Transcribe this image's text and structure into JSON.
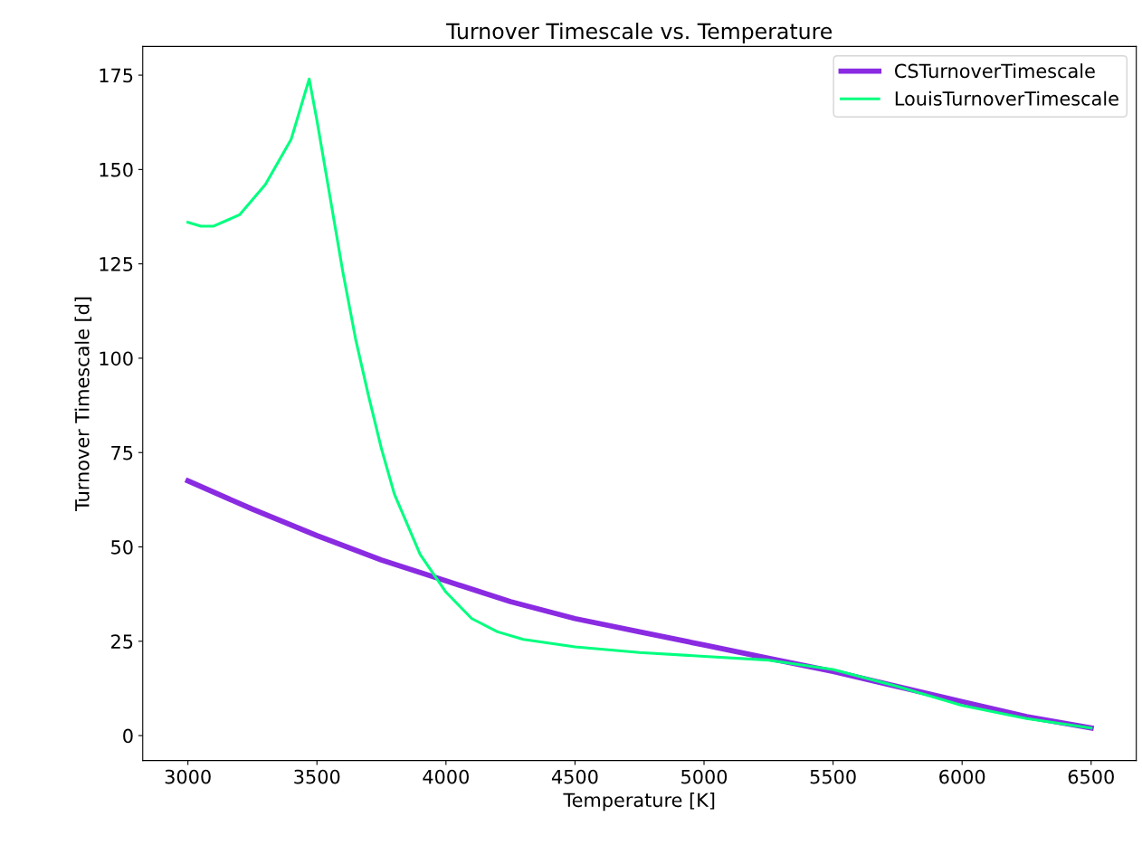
{
  "chart_data": {
    "type": "line",
    "title": "Turnover Timescale vs. Temperature",
    "xlabel": "Temperature [K]",
    "ylabel": "Turnover Timescale [d]",
    "xlim": [
      2825,
      6675
    ],
    "ylim": [
      -6.6,
      182.6
    ],
    "xticks": [
      3000,
      3500,
      4000,
      4500,
      5000,
      5500,
      6000,
      6500
    ],
    "yticks": [
      0,
      25,
      50,
      75,
      100,
      125,
      150,
      175
    ],
    "grid": false,
    "legend": "top right",
    "marker": "none",
    "line_style": "solid",
    "series": [
      {
        "name": "CSTurnoverTimescale",
        "color": "#8a2be2",
        "x": [
          3000,
          3250,
          3500,
          3750,
          4000,
          4250,
          4500,
          4750,
          5000,
          5250,
          5500,
          5750,
          6000,
          6250,
          6500
        ],
        "values": [
          67.5,
          60,
          53,
          46.5,
          41,
          35.5,
          31,
          27.5,
          24,
          20.5,
          17,
          13,
          9,
          5,
          2
        ]
      },
      {
        "name": "LouisTurnoverTimescale",
        "color": "#00ff7f",
        "x": [
          3000,
          3050,
          3100,
          3200,
          3300,
          3400,
          3470,
          3500,
          3550,
          3600,
          3650,
          3700,
          3750,
          3800,
          3900,
          4000,
          4100,
          4200,
          4300,
          4500,
          4750,
          5000,
          5250,
          5500,
          5750,
          6000,
          6250,
          6500
        ],
        "values": [
          136,
          135,
          135,
          138,
          146,
          158,
          174,
          163,
          143,
          123,
          105,
          90,
          76,
          64,
          48,
          38,
          31,
          27.5,
          25.5,
          23.5,
          22,
          21,
          20,
          17.5,
          13,
          8,
          4.5,
          2
        ]
      }
    ]
  }
}
